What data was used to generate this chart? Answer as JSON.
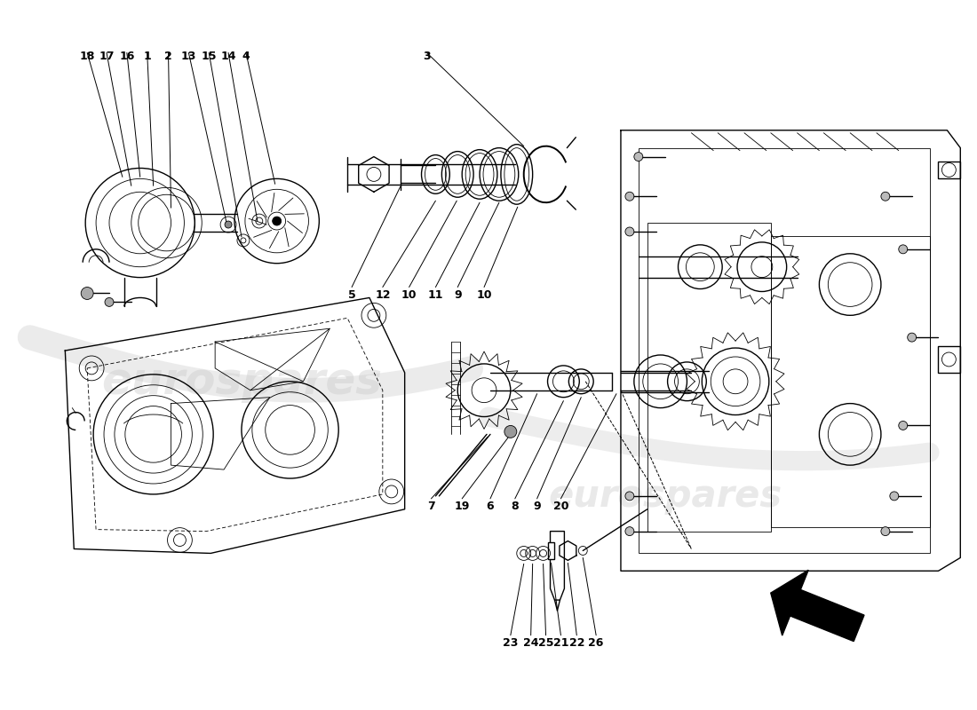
{
  "background_color": "#ffffff",
  "line_color": "#000000",
  "watermark_text_1": "eurospares",
  "watermark_text_2": "eurospares",
  "watermark_color": "#c8c8c8",
  "watermark_alpha": 0.4,
  "lw_main": 1.0,
  "lw_thin": 0.6,
  "lw_thick": 1.4,
  "figsize": [
    11.0,
    8.0
  ],
  "dpi": 100
}
